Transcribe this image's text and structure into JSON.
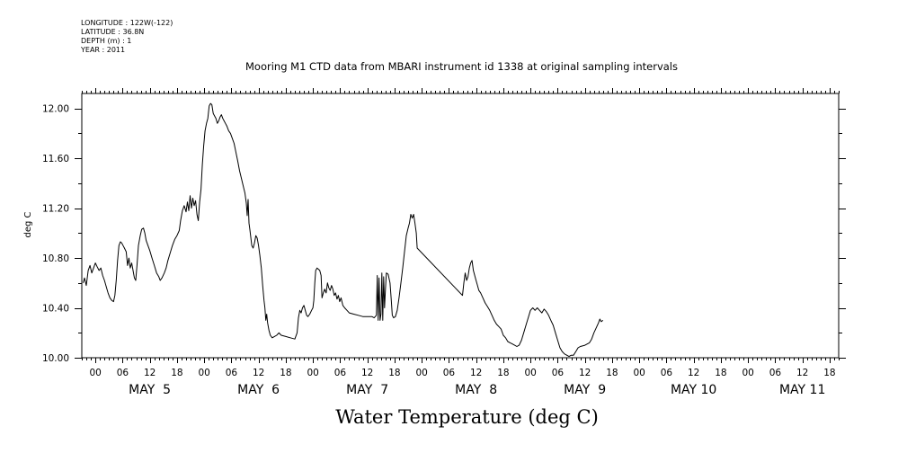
{
  "header": {
    "longitude": "LONGITUDE : 122W(-122)",
    "latitude": "LATITUDE : 36.8N",
    "depth": "DEPTH (m) : 1",
    "year": "YEAR : 2011"
  },
  "chart_data": {
    "type": "line",
    "title": "Mooring M1 CTD data from MBARI instrument id 1338 at original sampling intervals",
    "xlabel": "Water Temperature (deg C)",
    "ylabel": "deg C",
    "x_units": "hours since 2011-05-04 00:00",
    "xlim": [
      21,
      188
    ],
    "ylim": [
      10.0,
      12.12
    ],
    "yticks": [
      10.0,
      10.4,
      10.8,
      11.2,
      11.6,
      12.0
    ],
    "ytick_labels": [
      "10.00",
      "10.40",
      "10.80",
      "11.20",
      "11.60",
      "12.00"
    ],
    "hour_ticks": [
      {
        "x": 24,
        "label": "00"
      },
      {
        "x": 30,
        "label": "06"
      },
      {
        "x": 36,
        "label": "12"
      },
      {
        "x": 42,
        "label": "18"
      },
      {
        "x": 48,
        "label": "00"
      },
      {
        "x": 54,
        "label": "06"
      },
      {
        "x": 60,
        "label": "12"
      },
      {
        "x": 66,
        "label": "18"
      },
      {
        "x": 72,
        "label": "00"
      },
      {
        "x": 78,
        "label": "06"
      },
      {
        "x": 84,
        "label": "12"
      },
      {
        "x": 90,
        "label": "18"
      },
      {
        "x": 96,
        "label": "00"
      },
      {
        "x": 102,
        "label": "06"
      },
      {
        "x": 108,
        "label": "12"
      },
      {
        "x": 114,
        "label": "18"
      },
      {
        "x": 120,
        "label": "00"
      },
      {
        "x": 126,
        "label": "06"
      },
      {
        "x": 132,
        "label": "12"
      },
      {
        "x": 138,
        "label": "18"
      },
      {
        "x": 144,
        "label": "00"
      },
      {
        "x": 150,
        "label": "06"
      },
      {
        "x": 156,
        "label": "12"
      },
      {
        "x": 162,
        "label": "18"
      },
      {
        "x": 168,
        "label": "00"
      },
      {
        "x": 174,
        "label": "06"
      },
      {
        "x": 180,
        "label": "12"
      },
      {
        "x": 186,
        "label": "18"
      }
    ],
    "day_labels": [
      {
        "x": 36,
        "label": "MAY  5"
      },
      {
        "x": 60,
        "label": "MAY  6"
      },
      {
        "x": 84,
        "label": "MAY  7"
      },
      {
        "x": 108,
        "label": "MAY  8"
      },
      {
        "x": 132,
        "label": "MAY  9"
      },
      {
        "x": 156,
        "label": "MAY 10"
      },
      {
        "x": 180,
        "label": "MAY 11"
      }
    ],
    "series": [
      {
        "points": [
          [
            21.3,
            10.6
          ],
          [
            21.6,
            10.64
          ],
          [
            22.0,
            10.58
          ],
          [
            22.4,
            10.7
          ],
          [
            22.8,
            10.74
          ],
          [
            23.2,
            10.68
          ],
          [
            23.6,
            10.72
          ],
          [
            24.0,
            10.76
          ],
          [
            24.4,
            10.73
          ],
          [
            24.8,
            10.7
          ],
          [
            25.2,
            10.72
          ],
          [
            25.6,
            10.66
          ],
          [
            26.0,
            10.62
          ],
          [
            26.4,
            10.57
          ],
          [
            26.8,
            10.52
          ],
          [
            27.2,
            10.48
          ],
          [
            27.6,
            10.46
          ],
          [
            28.0,
            10.45
          ],
          [
            28.3,
            10.5
          ],
          [
            28.6,
            10.62
          ],
          [
            28.9,
            10.78
          ],
          [
            29.2,
            10.9
          ],
          [
            29.5,
            10.93
          ],
          [
            29.8,
            10.92
          ],
          [
            30.1,
            10.9
          ],
          [
            30.4,
            10.88
          ],
          [
            30.8,
            10.85
          ],
          [
            31.1,
            10.74
          ],
          [
            31.4,
            10.8
          ],
          [
            31.7,
            10.72
          ],
          [
            32.0,
            10.76
          ],
          [
            32.3,
            10.7
          ],
          [
            32.6,
            10.64
          ],
          [
            32.9,
            10.62
          ],
          [
            33.2,
            10.75
          ],
          [
            33.5,
            10.9
          ],
          [
            33.9,
            10.98
          ],
          [
            34.2,
            11.03
          ],
          [
            34.6,
            11.04
          ],
          [
            34.9,
            11.0
          ],
          [
            35.2,
            10.94
          ],
          [
            35.6,
            10.9
          ],
          [
            36.0,
            10.86
          ],
          [
            36.5,
            10.8
          ],
          [
            37.0,
            10.74
          ],
          [
            37.5,
            10.68
          ],
          [
            38.0,
            10.65
          ],
          [
            38.3,
            10.62
          ],
          [
            38.7,
            10.64
          ],
          [
            39.2,
            10.68
          ],
          [
            39.6,
            10.72
          ],
          [
            40.0,
            10.78
          ],
          [
            40.5,
            10.84
          ],
          [
            41.0,
            10.9
          ],
          [
            41.5,
            10.95
          ],
          [
            42.0,
            10.98
          ],
          [
            42.5,
            11.02
          ],
          [
            42.8,
            11.1
          ],
          [
            43.2,
            11.18
          ],
          [
            43.6,
            11.22
          ],
          [
            44.0,
            11.17
          ],
          [
            44.3,
            11.25
          ],
          [
            44.6,
            11.18
          ],
          [
            44.9,
            11.3
          ],
          [
            45.2,
            11.2
          ],
          [
            45.5,
            11.28
          ],
          [
            45.8,
            11.22
          ],
          [
            46.1,
            11.26
          ],
          [
            46.4,
            11.15
          ],
          [
            46.7,
            11.1
          ],
          [
            47.0,
            11.25
          ],
          [
            47.3,
            11.35
          ],
          [
            47.6,
            11.55
          ],
          [
            47.9,
            11.7
          ],
          [
            48.2,
            11.82
          ],
          [
            48.5,
            11.88
          ],
          [
            48.8,
            11.92
          ],
          [
            49.1,
            12.02
          ],
          [
            49.4,
            12.04
          ],
          [
            49.7,
            12.03
          ],
          [
            50.0,
            11.96
          ],
          [
            50.3,
            11.94
          ],
          [
            50.6,
            11.92
          ],
          [
            50.9,
            11.88
          ],
          [
            51.2,
            11.9
          ],
          [
            51.5,
            11.93
          ],
          [
            51.8,
            11.95
          ],
          [
            52.1,
            11.92
          ],
          [
            52.4,
            11.9
          ],
          [
            52.7,
            11.88
          ],
          [
            53.0,
            11.86
          ],
          [
            53.4,
            11.82
          ],
          [
            53.8,
            11.8
          ],
          [
            54.2,
            11.76
          ],
          [
            54.6,
            11.72
          ],
          [
            55.0,
            11.65
          ],
          [
            55.4,
            11.58
          ],
          [
            55.8,
            11.5
          ],
          [
            56.2,
            11.44
          ],
          [
            56.6,
            11.38
          ],
          [
            57.0,
            11.32
          ],
          [
            57.3,
            11.24
          ],
          [
            57.5,
            11.14
          ],
          [
            57.7,
            11.27
          ],
          [
            57.9,
            11.08
          ],
          [
            58.1,
            11.02
          ],
          [
            58.3,
            10.96
          ],
          [
            58.5,
            10.9
          ],
          [
            58.8,
            10.88
          ],
          [
            59.1,
            10.92
          ],
          [
            59.4,
            10.98
          ],
          [
            59.7,
            10.96
          ],
          [
            60.0,
            10.9
          ],
          [
            60.3,
            10.82
          ],
          [
            60.6,
            10.72
          ],
          [
            60.9,
            10.58
          ],
          [
            61.2,
            10.46
          ],
          [
            61.4,
            10.4
          ],
          [
            61.6,
            10.3
          ],
          [
            61.8,
            10.35
          ],
          [
            62.0,
            10.28
          ],
          [
            62.3,
            10.22
          ],
          [
            62.6,
            10.18
          ],
          [
            63.0,
            10.16
          ],
          [
            63.5,
            10.17
          ],
          [
            64.0,
            10.18
          ],
          [
            64.5,
            10.2
          ],
          [
            65.0,
            10.18
          ],
          [
            66.0,
            10.17
          ],
          [
            67.0,
            10.16
          ],
          [
            68.0,
            10.15
          ],
          [
            68.5,
            10.2
          ],
          [
            68.8,
            10.32
          ],
          [
            69.1,
            10.38
          ],
          [
            69.4,
            10.36
          ],
          [
            69.7,
            10.4
          ],
          [
            70.0,
            10.42
          ],
          [
            70.3,
            10.38
          ],
          [
            70.6,
            10.34
          ],
          [
            70.9,
            10.33
          ],
          [
            71.3,
            10.35
          ],
          [
            71.7,
            10.38
          ],
          [
            72.0,
            10.4
          ],
          [
            72.2,
            10.46
          ],
          [
            72.4,
            10.6
          ],
          [
            72.6,
            10.7
          ],
          [
            72.9,
            10.72
          ],
          [
            73.2,
            10.71
          ],
          [
            73.5,
            10.7
          ],
          [
            73.8,
            10.66
          ],
          [
            74.0,
            10.48
          ],
          [
            74.3,
            10.52
          ],
          [
            74.6,
            10.55
          ],
          [
            74.9,
            10.52
          ],
          [
            75.2,
            10.6
          ],
          [
            75.5,
            10.56
          ],
          [
            75.8,
            10.54
          ],
          [
            76.1,
            10.58
          ],
          [
            76.4,
            10.55
          ],
          [
            76.7,
            10.5
          ],
          [
            77.0,
            10.52
          ],
          [
            77.3,
            10.47
          ],
          [
            77.6,
            10.5
          ],
          [
            77.9,
            10.45
          ],
          [
            78.2,
            10.48
          ],
          [
            78.6,
            10.42
          ],
          [
            79.0,
            10.4
          ],
          [
            79.5,
            10.38
          ],
          [
            80.0,
            10.36
          ],
          [
            81.0,
            10.35
          ],
          [
            82.0,
            10.34
          ],
          [
            83.0,
            10.33
          ],
          [
            84.0,
            10.33
          ],
          [
            85.0,
            10.33
          ],
          [
            85.5,
            10.32
          ],
          [
            86.0,
            10.34
          ],
          [
            86.2,
            10.66
          ],
          [
            86.4,
            10.3
          ],
          [
            86.6,
            10.64
          ],
          [
            86.8,
            10.3
          ],
          [
            87.0,
            10.35
          ],
          [
            87.2,
            10.68
          ],
          [
            87.4,
            10.3
          ],
          [
            87.6,
            10.65
          ],
          [
            87.8,
            10.4
          ],
          [
            88.0,
            10.55
          ],
          [
            88.2,
            10.68
          ],
          [
            88.6,
            10.67
          ],
          [
            89.0,
            10.6
          ],
          [
            89.3,
            10.45
          ],
          [
            89.5,
            10.34
          ],
          [
            89.8,
            10.32
          ],
          [
            90.2,
            10.33
          ],
          [
            90.6,
            10.38
          ],
          [
            91.0,
            10.48
          ],
          [
            91.4,
            10.6
          ],
          [
            91.8,
            10.72
          ],
          [
            92.2,
            10.85
          ],
          [
            92.6,
            10.98
          ],
          [
            93.0,
            11.04
          ],
          [
            93.3,
            11.08
          ],
          [
            93.6,
            11.15
          ],
          [
            93.9,
            11.12
          ],
          [
            94.2,
            11.15
          ],
          [
            94.5,
            11.08
          ],
          [
            94.8,
            11.0
          ],
          [
            95.0,
            10.88
          ],
          [
            105.0,
            10.5
          ],
          [
            105.3,
            10.6
          ],
          [
            105.6,
            10.68
          ],
          [
            105.9,
            10.62
          ],
          [
            106.2,
            10.65
          ],
          [
            106.5,
            10.72
          ],
          [
            106.8,
            10.76
          ],
          [
            107.1,
            10.78
          ],
          [
            107.4,
            10.7
          ],
          [
            107.7,
            10.66
          ],
          [
            108.0,
            10.62
          ],
          [
            108.3,
            10.58
          ],
          [
            108.6,
            10.54
          ],
          [
            109.0,
            10.52
          ],
          [
            109.5,
            10.48
          ],
          [
            110.0,
            10.44
          ],
          [
            110.5,
            10.41
          ],
          [
            111.0,
            10.38
          ],
          [
            111.5,
            10.34
          ],
          [
            112.0,
            10.3
          ],
          [
            112.5,
            10.27
          ],
          [
            113.0,
            10.25
          ],
          [
            113.5,
            10.23
          ],
          [
            114.0,
            10.18
          ],
          [
            114.5,
            10.16
          ],
          [
            115.0,
            10.13
          ],
          [
            115.5,
            10.12
          ],
          [
            116.0,
            10.11
          ],
          [
            116.5,
            10.1
          ],
          [
            117.0,
            10.09
          ],
          [
            117.5,
            10.1
          ],
          [
            118.0,
            10.14
          ],
          [
            118.5,
            10.2
          ],
          [
            119.0,
            10.26
          ],
          [
            119.5,
            10.32
          ],
          [
            120.0,
            10.38
          ],
          [
            120.5,
            10.4
          ],
          [
            121.0,
            10.38
          ],
          [
            121.5,
            10.4
          ],
          [
            122.0,
            10.38
          ],
          [
            122.5,
            10.36
          ],
          [
            123.0,
            10.39
          ],
          [
            123.5,
            10.37
          ],
          [
            124.0,
            10.34
          ],
          [
            124.5,
            10.3
          ],
          [
            125.0,
            10.26
          ],
          [
            125.5,
            10.2
          ],
          [
            126.0,
            10.14
          ],
          [
            126.5,
            10.08
          ],
          [
            127.0,
            10.05
          ],
          [
            127.5,
            10.03
          ],
          [
            128.0,
            10.02
          ],
          [
            128.5,
            10.01
          ],
          [
            129.0,
            10.02
          ],
          [
            129.5,
            10.02
          ],
          [
            130.0,
            10.05
          ],
          [
            130.5,
            10.08
          ],
          [
            131.0,
            10.09
          ],
          [
            132.0,
            10.1
          ],
          [
            133.0,
            10.12
          ],
          [
            133.5,
            10.15
          ],
          [
            134.0,
            10.2
          ],
          [
            134.5,
            10.24
          ],
          [
            135.0,
            10.28
          ],
          [
            135.3,
            10.31
          ],
          [
            135.6,
            10.29
          ],
          [
            136.0,
            10.3
          ]
        ]
      }
    ]
  }
}
